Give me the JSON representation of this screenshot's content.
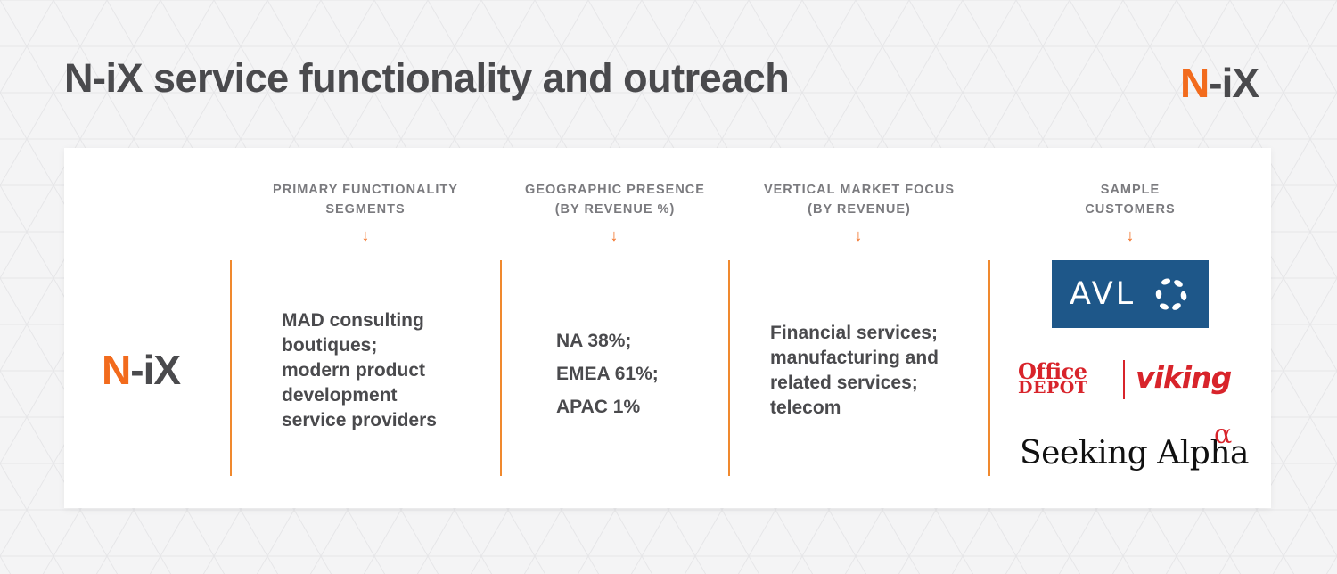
{
  "title": "N-iX service functionality and outreach",
  "brand": {
    "n": "N",
    "dash": "-",
    "ix": "iX"
  },
  "colors": {
    "accent": "#f26b1d",
    "text": "#4a4a4d",
    "divider": "#f0892e",
    "avl_blue": "#1e5789",
    "office_depot_red": "#d8242b"
  },
  "columns": [
    {
      "header": [
        "PRIMARY FUNCTIONALITY",
        "SEGMENTS"
      ],
      "arrow": "↓",
      "lines": [
        "MAD consulting",
        "boutiques;",
        "modern product",
        "development",
        "service providers"
      ]
    },
    {
      "header": [
        "GEOGRAPHIC PRESENCE",
        "(BY REVENUE %)"
      ],
      "arrow": "↓",
      "lines": [
        "NA 38%;",
        "EMEA 61%;",
        "APAC 1%"
      ]
    },
    {
      "header": [
        "VERTICAL MARKET FOCUS",
        "(BY REVENUE)"
      ],
      "arrow": "↓",
      "lines": [
        "Financial services;",
        "manufacturing and",
        "related services;",
        "telecom"
      ]
    },
    {
      "header": [
        "SAMPLE",
        "CUSTOMERS"
      ],
      "arrow": "↓"
    }
  ],
  "customers": {
    "avl": "AVL",
    "office_depot": {
      "office": "Office",
      "depot": "DEPOT",
      "viking": "viking"
    },
    "seeking_alpha": {
      "text": "Seeking Alpha",
      "alpha": "α"
    }
  }
}
